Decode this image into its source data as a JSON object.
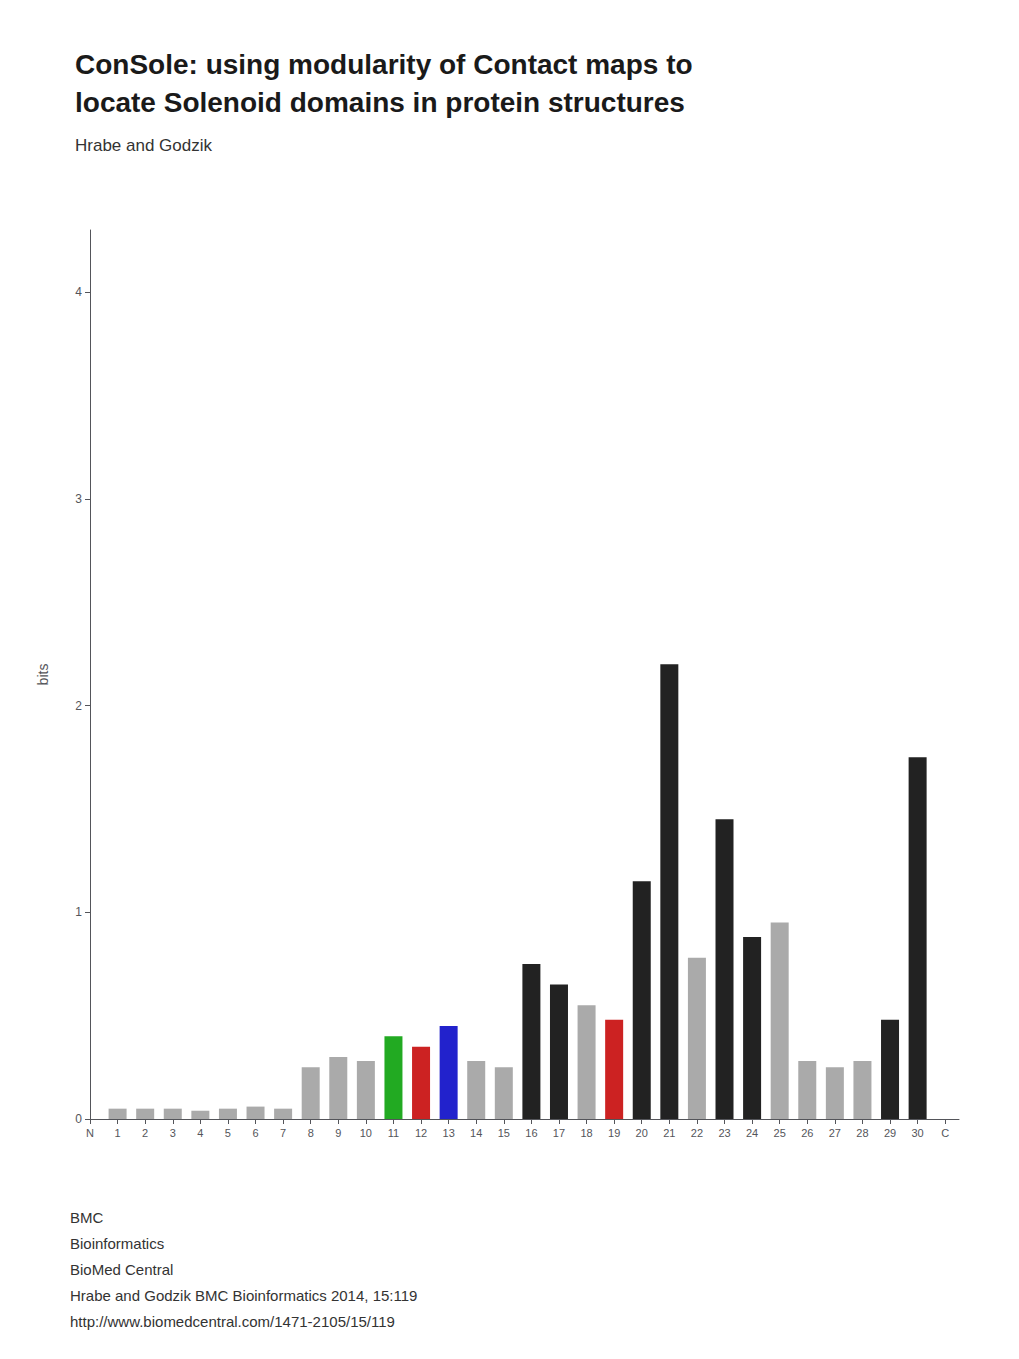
{
  "chart_data": {
    "type": "bar",
    "title": "ConSole: using modularity of Contact maps to\nlocate Solenoid domains in protein structures",
    "subtitle": "Hrabe and Godzik",
    "annotations": [
      "BMC",
      "Bioinformatics",
      "BioMed Central",
      "Hrabe and Godzik BMC Bioinformatics 2014, 15:119",
      "http://www.biomedcentral.com/1471-2105/15/119"
    ],
    "y_label": "bits",
    "x": [
      1,
      2,
      3,
      4,
      5,
      6,
      7,
      8,
      9,
      10,
      11,
      12,
      13,
      14,
      15,
      16,
      17,
      18,
      19,
      20,
      21,
      22,
      23,
      24,
      25,
      26,
      27,
      28,
      29,
      30
    ],
    "values": [
      0.05,
      0.05,
      0.05,
      0.04,
      0.05,
      0.06,
      0.05,
      0.25,
      0.3,
      0.28,
      0.4,
      0.35,
      0.45,
      0.28,
      0.25,
      0.75,
      0.65,
      0.55,
      0.48,
      1.15,
      2.2,
      0.78,
      1.45,
      0.88,
      0.95,
      0.28,
      0.25,
      0.28,
      0.48,
      1.75
    ],
    "colors": [
      "#aaaaaa",
      "#aaaaaa",
      "#aaaaaa",
      "#aaaaaa",
      "#aaaaaa",
      "#aaaaaa",
      "#aaaaaa",
      "#aaaaaa",
      "#aaaaaa",
      "#aaaaaa",
      "#22aa22",
      "#cc2222",
      "#2222cc",
      "#aaaaaa",
      "#aaaaaa",
      "#222222",
      "#222222",
      "#aaaaaa",
      "#cc2222",
      "#222222",
      "#222222",
      "#aaaaaa",
      "#222222",
      "#222222",
      "#aaaaaa",
      "#aaaaaa",
      "#aaaaaa",
      "#aaaaaa",
      "#222222",
      "#222222"
    ],
    "xlim": [
      0,
      31.5
    ],
    "xticks": [
      {
        "value": 0,
        "label": "N"
      },
      1,
      2,
      3,
      4,
      5,
      6,
      7,
      8,
      9,
      10,
      11,
      12,
      13,
      14,
      15,
      16,
      17,
      18,
      19,
      20,
      21,
      22,
      23,
      24,
      25,
      26,
      27,
      28,
      29,
      30,
      {
        "value": 31,
        "label": "C"
      }
    ],
    "ylim": [
      0,
      4.3
    ],
    "yticks": [
      0,
      1,
      2,
      3,
      4
    ],
    "grid": false
  }
}
